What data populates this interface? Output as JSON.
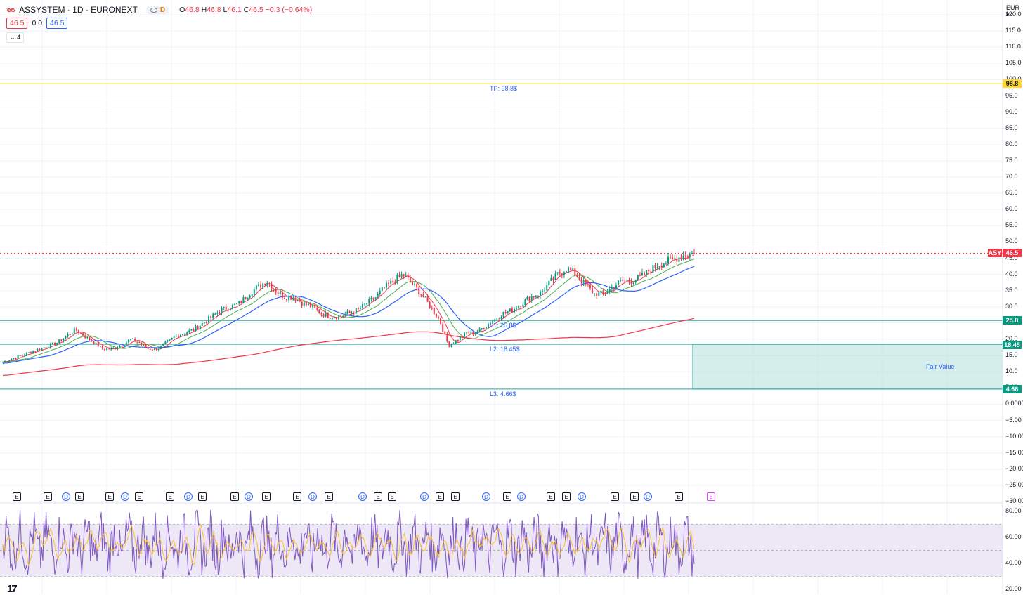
{
  "header": {
    "logo_text": "ᴓᴓ",
    "symbol_line": "ASSYSTEM · 1D · EURONEXT",
    "pill_label": "D",
    "ohlc": {
      "o_label": "O",
      "o_value": "46.8",
      "h_label": "H",
      "h_value": "46.8",
      "l_label": "L",
      "l_value": "46.1",
      "c_label": "C",
      "c_value": "46.5",
      "change": "−0.3 (−0.64%)"
    },
    "bid": "46.5",
    "spread": "0.0",
    "ask": "46.5",
    "indicators_toggle": "4"
  },
  "price_axis": {
    "currency": "EUR",
    "ticks": [
      "120.0",
      "115.0",
      "110.0",
      "105.0",
      "100.0",
      "95.0",
      "90.0",
      "85.0",
      "80.0",
      "75.0",
      "70.0",
      "65.0",
      "60.0",
      "55.0",
      "50.0",
      "45.0",
      "40.0",
      "35.0",
      "30.0",
      "25.0",
      "20.0",
      "15.0",
      "10.0",
      "5.00",
      "0.0000",
      "−5.00",
      "−10.00",
      "−15.00",
      "−20.00",
      "−25.00",
      "−30.00"
    ]
  },
  "rsi_axis": {
    "ticks": [
      "80.00",
      "60.00",
      "40.00",
      "20.00"
    ]
  },
  "price_tags": {
    "tp": "98.8",
    "last_symbol": "ASY",
    "last": "46.5",
    "l1": "25.8",
    "l2": "18.45",
    "l3": "4.66"
  },
  "annotations": {
    "tp_label": "TP: 98.8$",
    "l1_label": "L1: 25.8$",
    "l2_label": "L2: 18.45$",
    "l3_label": "L3: 4.66$",
    "zone_label": "Fair Value"
  },
  "events": [
    "E",
    "E",
    "D",
    "E",
    "E",
    "D",
    "E",
    "E",
    "D",
    "E",
    "E",
    "D",
    "E",
    "E",
    "D",
    "E",
    "D",
    "E",
    "E",
    "D",
    "E",
    "E",
    "D",
    "E",
    "D",
    "E",
    "E",
    "D",
    "E",
    "E",
    "D",
    "E"
  ],
  "watermark": "17",
  "colors": {
    "candle_up": "#089981",
    "candle_down": "#f23645",
    "ma_short": "#f23645",
    "ma_mid": "#4caf50",
    "ma_long": "#2962ff",
    "ma_200": "#f23645",
    "tp_line": "#fff176",
    "level_line": "#26a69a",
    "zone_fill": "#b2dfdb",
    "rsi_line": "#7e57c2",
    "rsi_ma": "#fbc02d",
    "rsi_band": "#ede7f6"
  },
  "chart_data": {
    "type": "line",
    "series": [
      {
        "values": [
          13,
          14,
          15,
          16,
          17,
          18,
          19,
          21,
          23,
          21,
          19,
          17,
          17,
          18,
          20,
          19,
          17,
          17,
          19,
          21,
          22,
          23,
          25,
          27,
          29,
          30,
          31,
          34,
          36,
          38,
          35,
          33,
          33,
          31,
          30,
          28,
          27,
          27,
          28,
          29,
          31,
          33,
          36,
          38,
          40,
          37,
          34,
          30,
          26,
          18,
          20,
          22,
          22,
          24,
          26,
          28,
          29,
          31,
          33,
          34,
          37,
          40,
          42,
          40,
          37,
          34,
          34,
          36,
          38,
          38,
          39,
          41,
          43,
          44,
          45,
          46,
          46.5
        ]
      }
    ],
    "levels": {
      "tp": 98.8,
      "last": 46.5,
      "l1": 25.8,
      "l2": 18.45,
      "l3": 4.66
    },
    "fair_value_zone": [
      4.66,
      18.45
    ],
    "ylim": [
      -30,
      120
    ],
    "rsi_ylim": [
      20,
      80
    ],
    "rsi_band": [
      30,
      70
    ]
  }
}
